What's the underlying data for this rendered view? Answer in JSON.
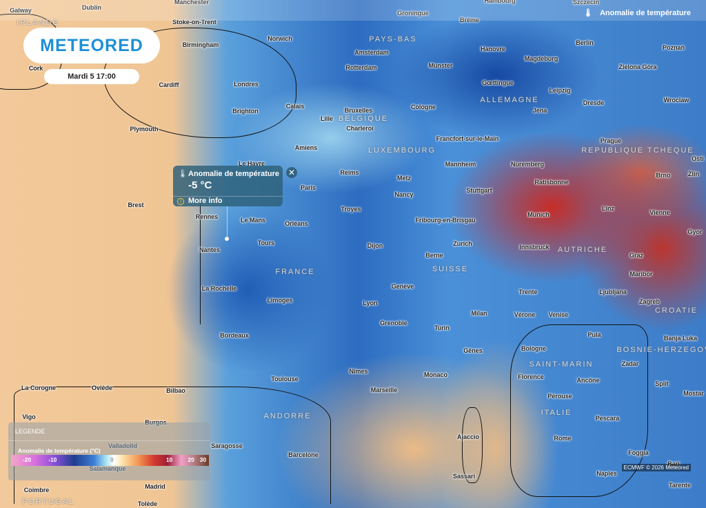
{
  "brand": {
    "logo": "METEORED"
  },
  "date": "Mardi 5 17:00",
  "layer": {
    "icon": "thermometer-icon",
    "label": "Anomalie de température"
  },
  "popup": {
    "title": "Anomalie de température",
    "value": "-5 °C",
    "more": "More info",
    "close": "✕"
  },
  "legend": {
    "heading": "LEGENDE",
    "subtitle": "Anomalie de température (°C)",
    "ticks": [
      "-20",
      "-10",
      "0",
      "10",
      "20",
      "30"
    ]
  },
  "credit": "ECMWF © 2026 Meteored",
  "cities": [
    "Galway",
    "Dublin",
    "Manchester",
    "Stoke-on-Trent",
    "Groningue",
    "Hambourg",
    "Brême",
    "Szczecin",
    "Birmingham",
    "Norwich",
    "Amsterdam",
    "Hanovre",
    "Berlin",
    "Poznań",
    "Cork",
    "Cardiff",
    "Londres",
    "Rotterdam",
    "Munster",
    "Magdeburg",
    "Zielona Góra",
    "Gœttingue",
    "Leipzig",
    "Brighton",
    "Calais",
    "Bruxelles",
    "Cologne",
    "Jena",
    "Dresde",
    "Wroclaw",
    "Plymouth",
    "Lille",
    "Charleroi",
    "Francfort-sur-le-Main",
    "Prague",
    "Amiens",
    "Le Havre",
    "Mannheim",
    "Nuremberg",
    "Reims",
    "Paris",
    "Metz",
    "Stuttgart",
    "Ratisbonne",
    "Brno",
    "Zlin",
    "Brest",
    "Nancy",
    "Troyes",
    "Rennes",
    "Le Mans",
    "Orléans",
    "Fribourg-en-Brisgau",
    "Munich",
    "Linz",
    "Vienne",
    "Nantes",
    "Tours",
    "Dijon",
    "Zurich",
    "Innsbruck",
    "Gyor",
    "Berne",
    "Graz",
    "La Rochelle",
    "Genève",
    "Trente",
    "Maribor",
    "Ljubljana",
    "Limoges",
    "Lyon",
    "Zagreb",
    "Milan",
    "Vérone",
    "Venise",
    "Grenoble",
    "Turin",
    "Pula",
    "Banja Luka",
    "Bordeaux",
    "Gênes",
    "Bologne",
    "Zadar",
    "Nîmes",
    "Florence",
    "Ancône",
    "Toulouse",
    "Monaco",
    "Split",
    "Oviède",
    "Bilbao",
    "La Corogne",
    "Marseille",
    "Mostar",
    "Pérouse",
    "Burgos",
    "Pescara",
    "Vigo",
    "Ajaccio",
    "Rome",
    "Valladolid",
    "Saragosse",
    "Barcelone",
    "Foggia",
    "Salamanque",
    "Sassari",
    "Naples",
    "Bari",
    "Madrid",
    "Coimbre",
    "Tolède",
    "Tarente",
    "Osti"
  ],
  "countries": [
    "IRLANDE",
    "PAYS-BAS",
    "BELGIQUE",
    "ALLEMAGNE",
    "LUXEMBOURG",
    "REPUBLIQUE TCHEQUE",
    "AUTRICHE",
    "SUISSE",
    "FRANCE",
    "CROATIE",
    "BOSNIE-HERZEGOVINE",
    "SAINT-MARIN",
    "ITALIE",
    "ANDORRE",
    "PORTUGAL"
  ]
}
